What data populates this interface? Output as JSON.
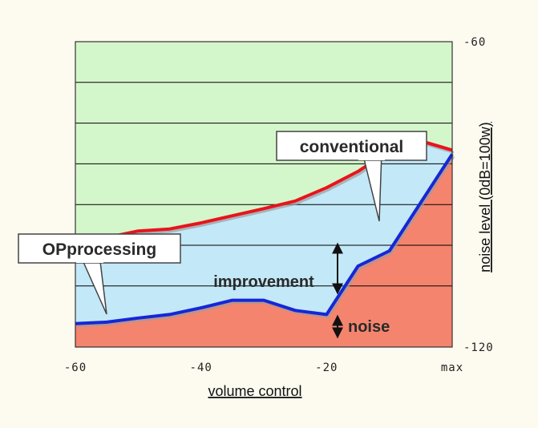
{
  "chart_data": {
    "type": "line",
    "xlabel": "volume control",
    "ylabel": "noise level (0dB=100w)",
    "xlim": [
      -60,
      0
    ],
    "ylim": [
      -120,
      -60
    ],
    "x_ticks": [
      {
        "value": -60,
        "label": "-60"
      },
      {
        "value": -40,
        "label": "-40"
      },
      {
        "value": -20,
        "label": "-20"
      },
      {
        "value": 0,
        "label": "max"
      }
    ],
    "y_ticks": [
      {
        "value": -60,
        "label": "-60"
      },
      {
        "value": -120,
        "label": "-120"
      }
    ],
    "gridlines_y": [
      -60,
      -68,
      -76,
      -84,
      -92,
      -100,
      -108,
      -120
    ],
    "grid": true,
    "series": [
      {
        "name": "conventional",
        "color": "#e8141c",
        "x": [
          -60,
          -55,
          -50,
          -45,
          -40,
          -35,
          -30,
          -25,
          -20,
          -15,
          -10,
          -5,
          0
        ],
        "y": [
          -98.5,
          -98.5,
          -97.2,
          -96.8,
          -95.6,
          -94.2,
          -92.8,
          -91.3,
          -88.7,
          -85.5,
          -81.4,
          -79.5,
          -81.3
        ]
      },
      {
        "name": "OPprocessing",
        "color": "#1427d8",
        "x": [
          -60,
          -55,
          -50,
          -45,
          -40,
          -35,
          -30,
          -25,
          -20,
          -15,
          -10,
          -5,
          0
        ],
        "y": [
          -115.4,
          -115.1,
          -114.3,
          -113.6,
          -112.3,
          -110.8,
          -110.8,
          -112.8,
          -113.6,
          -104.1,
          -101.1,
          -91.6,
          -82.1
        ]
      }
    ],
    "fill_colors": {
      "plot_background": "#d4f6cb",
      "improvement_band": "#c3e8f8",
      "noise_area": "#f5846e",
      "line_shadow": "#9c9c9c"
    },
    "annotations": {
      "conventional_label": "conventional",
      "op_label": "OPprocessing",
      "improvement": "improvement",
      "noise": "noise"
    }
  }
}
